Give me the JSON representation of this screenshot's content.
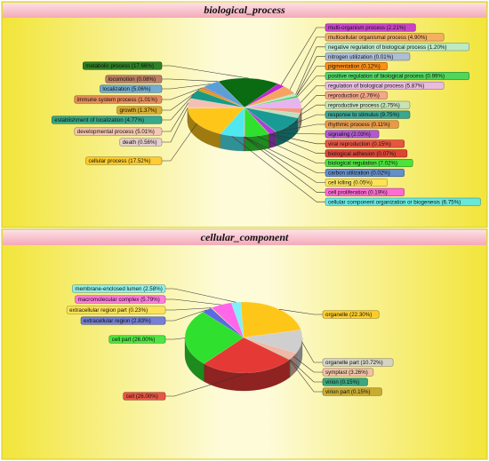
{
  "chart_data": [
    {
      "type": "pie",
      "title": "biological_process",
      "slices": [
        {
          "label": "metabolic process (17.66%)",
          "value": 17.66,
          "color": "#0b6b12",
          "side": "left"
        },
        {
          "label": "multi-organism process (2.21%)",
          "value": 2.21,
          "color": "#c026d3",
          "side": "right"
        },
        {
          "label": "multicellular organismal process (4.90%)",
          "value": 4.9,
          "color": "#f4a460",
          "side": "right"
        },
        {
          "label": "negative regulation of biological process (1.20%)",
          "value": 1.2,
          "color": "#b0ead8",
          "side": "right"
        },
        {
          "label": "nitrogen utilization (0.01%)",
          "value": 0.01,
          "color": "#9fb4e8",
          "side": "right"
        },
        {
          "label": "pigmentation (0.12%)",
          "value": 0.12,
          "color": "#ff7f00",
          "side": "right"
        },
        {
          "label": "positive regulation of biological process (0.99%)",
          "value": 0.99,
          "color": "#33d45a",
          "side": "right"
        },
        {
          "label": "regulation of biological process (5.87%)",
          "value": 5.87,
          "color": "#e8b4f0",
          "side": "right"
        },
        {
          "label": "reproduction (2.76%)",
          "value": 2.76,
          "color": "#f59a86",
          "side": "right"
        },
        {
          "label": "reproductive process (2.75%)",
          "value": 2.75,
          "color": "#bfe0c0",
          "side": "right"
        },
        {
          "label": "response to stimulus (9.75%)",
          "value": 9.75,
          "color": "#1a9a94",
          "side": "right"
        },
        {
          "label": "rhythmic process (0.11%)",
          "value": 0.11,
          "color": "#e88a3a",
          "side": "right"
        },
        {
          "label": "signaling (2.03%)",
          "value": 2.03,
          "color": "#a640d8",
          "side": "right"
        },
        {
          "label": "viral reproduction (0.15%)",
          "value": 0.15,
          "color": "#e53935",
          "side": "right"
        },
        {
          "label": "biological adhesion (0.07%)",
          "value": 0.07,
          "color": "#d62828",
          "side": "right"
        },
        {
          "label": "biological regulation (7.02%)",
          "value": 7.02,
          "color": "#2fe02f",
          "side": "right"
        },
        {
          "label": "carbon utilization (0.02%)",
          "value": 0.02,
          "color": "#4a7fd8",
          "side": "right"
        },
        {
          "label": "cell killing (0.05%)",
          "value": 0.05,
          "color": "#ffe14d",
          "side": "right"
        },
        {
          "label": "cell proliferation (0.19%)",
          "value": 0.19,
          "color": "#ff55e0",
          "side": "right"
        },
        {
          "label": "cellular component organization or biogenesis (6.75%)",
          "value": 6.75,
          "color": "#4fe8f0",
          "side": "right"
        },
        {
          "label": "cellular process (17.52%)",
          "value": 17.52,
          "color": "#ffc61a",
          "side": "left"
        },
        {
          "label": "death (0.56%)",
          "value": 0.56,
          "color": "#e0c8d8",
          "side": "left"
        },
        {
          "label": "developmental process (5.01%)",
          "value": 5.01,
          "color": "#f2c0b4",
          "side": "left"
        },
        {
          "label": "establishment of localization (4.77%)",
          "value": 4.77,
          "color": "#169a86",
          "side": "left"
        },
        {
          "label": "growth (1.37%)",
          "value": 1.37,
          "color": "#d4a017",
          "side": "left"
        },
        {
          "label": "immune system process (1.01%)",
          "value": 1.01,
          "color": "#e07a50",
          "side": "left"
        },
        {
          "label": "localization (5.06%)",
          "value": 5.06,
          "color": "#5b9ed8",
          "side": "left"
        },
        {
          "label": "locomotion (0.08%)",
          "value": 0.08,
          "color": "#b06a5a",
          "side": "left"
        }
      ],
      "label_order": {
        "left": [
          "metabolic process (17.66%)",
          "locomotion (0.08%)",
          "localization (5.06%)",
          "immune system process (1.01%)",
          "growth (1.37%)",
          "establishment of localization (4.77%)",
          "developmental process (5.01%)",
          "death (0.56%)",
          "cellular process (17.52%)"
        ],
        "right": [
          "multi-organism process (2.21%)",
          "multicellular organismal process (4.90%)",
          "negative regulation of biological process (1.20%)",
          "nitrogen utilization (0.01%)",
          "pigmentation (0.12%)",
          "positive regulation of biological process (0.99%)",
          "regulation of biological process (5.87%)",
          "reproduction (2.76%)",
          "reproductive process (2.75%)",
          "response to stimulus (9.75%)",
          "rhythmic process (0.11%)",
          "signaling (2.03%)",
          "viral reproduction (0.15%)",
          "biological adhesion (0.07%)",
          "biological regulation (7.02%)",
          "carbon utilization (0.02%)",
          "cell killing (0.05%)",
          "cell proliferation (0.19%)",
          "cellular component organization or biogenesis (6.75%)"
        ]
      }
    },
    {
      "type": "pie",
      "title": "cellular_component",
      "slices": [
        {
          "label": "organelle (22.30%)",
          "value": 22.3,
          "color": "#ffc61a",
          "side": "right"
        },
        {
          "label": "organelle part (10.72%)",
          "value": 10.72,
          "color": "#cfcfcf",
          "side": "right"
        },
        {
          "label": "symplast (3.26%)",
          "value": 3.26,
          "color": "#f0b8a8",
          "side": "right"
        },
        {
          "label": "virion (0.15%)",
          "value": 0.15,
          "color": "#1a9a7a",
          "side": "right"
        },
        {
          "label": "virion part (0.15%)",
          "value": 0.15,
          "color": "#c0a020",
          "side": "right"
        },
        {
          "label": "cell (26.00%)",
          "value": 26.0,
          "color": "#e53935",
          "side": "left"
        },
        {
          "label": "cell part (26.00%)",
          "value": 26.0,
          "color": "#2fe02f",
          "side": "left"
        },
        {
          "label": "extracellular region (2.83%)",
          "value": 2.83,
          "color": "#5a6ae0",
          "side": "left"
        },
        {
          "label": "extracellular region part (0.23%)",
          "value": 0.23,
          "color": "#ffe14d",
          "side": "left"
        },
        {
          "label": "macromolecular complex (5.79%)",
          "value": 5.79,
          "color": "#ff66e8",
          "side": "left"
        },
        {
          "label": "membrane-enclosed lumen (2.58%)",
          "value": 2.58,
          "color": "#7ff0f8",
          "side": "left"
        }
      ],
      "label_order": {
        "left": [
          "membrane-enclosed lumen (2.58%)",
          "macromolecular complex (5.79%)",
          "extracellular region part (0.23%)",
          "extracellular region (2.83%)",
          "cell part (26.00%)",
          "cell (26.00%)"
        ],
        "right": [
          "organelle (22.30%)",
          "organelle part (10.72%)",
          "symplast (3.26%)",
          "virion (0.15%)",
          "virion part (0.15%)"
        ]
      }
    }
  ]
}
